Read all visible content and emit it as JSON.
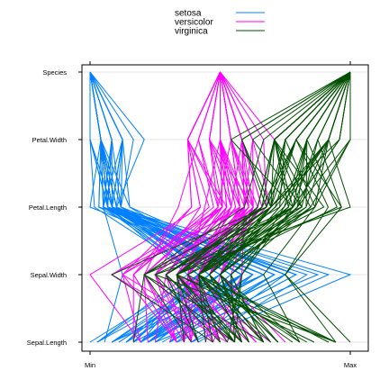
{
  "chart_data": {
    "type": "parallel-coordinates",
    "dimensions": [
      "Sepal.Length",
      "Sepal.Width",
      "Petal.Length",
      "Petal.Width",
      "Species"
    ],
    "x_tick_labels": [
      "Min",
      "Max"
    ],
    "legend": {
      "placement": "top",
      "entries": [
        {
          "label": "setosa",
          "color": "#0080ff"
        },
        {
          "label": "versicolor",
          "color": "#ff00ff"
        },
        {
          "label": "virginica",
          "color": "#005000"
        }
      ]
    },
    "series": [
      {
        "name": "setosa",
        "color": "#0080ff",
        "rows": [
          [
            5.1,
            3.5,
            1.4,
            0.2
          ],
          [
            4.9,
            3.0,
            1.4,
            0.2
          ],
          [
            4.7,
            3.2,
            1.3,
            0.2
          ],
          [
            4.6,
            3.1,
            1.5,
            0.2
          ],
          [
            5.0,
            3.6,
            1.4,
            0.2
          ],
          [
            5.4,
            3.9,
            1.7,
            0.4
          ],
          [
            4.6,
            3.4,
            1.4,
            0.3
          ],
          [
            5.0,
            3.4,
            1.5,
            0.2
          ],
          [
            4.4,
            2.9,
            1.4,
            0.2
          ],
          [
            4.9,
            3.1,
            1.5,
            0.1
          ],
          [
            5.4,
            3.7,
            1.5,
            0.2
          ],
          [
            4.8,
            3.4,
            1.6,
            0.2
          ],
          [
            4.8,
            3.0,
            1.4,
            0.1
          ],
          [
            4.3,
            3.0,
            1.1,
            0.1
          ],
          [
            5.8,
            4.0,
            1.2,
            0.2
          ],
          [
            5.7,
            4.4,
            1.5,
            0.4
          ],
          [
            5.4,
            3.9,
            1.3,
            0.4
          ],
          [
            5.1,
            3.5,
            1.4,
            0.3
          ],
          [
            5.7,
            3.8,
            1.7,
            0.3
          ],
          [
            5.1,
            3.8,
            1.5,
            0.3
          ],
          [
            5.4,
            3.4,
            1.7,
            0.2
          ],
          [
            5.1,
            3.7,
            1.5,
            0.4
          ],
          [
            4.6,
            3.6,
            1.0,
            0.2
          ],
          [
            5.1,
            3.3,
            1.7,
            0.5
          ],
          [
            4.8,
            3.4,
            1.9,
            0.2
          ],
          [
            5.0,
            3.0,
            1.6,
            0.2
          ],
          [
            5.0,
            3.4,
            1.6,
            0.4
          ],
          [
            5.2,
            3.5,
            1.5,
            0.2
          ],
          [
            5.2,
            3.4,
            1.4,
            0.2
          ],
          [
            4.7,
            3.2,
            1.6,
            0.2
          ],
          [
            4.8,
            3.1,
            1.6,
            0.2
          ],
          [
            5.4,
            3.4,
            1.5,
            0.4
          ],
          [
            5.2,
            4.1,
            1.5,
            0.1
          ],
          [
            5.5,
            4.2,
            1.4,
            0.2
          ],
          [
            4.9,
            3.1,
            1.5,
            0.2
          ],
          [
            5.0,
            3.2,
            1.2,
            0.2
          ],
          [
            5.5,
            3.5,
            1.3,
            0.2
          ],
          [
            4.9,
            3.6,
            1.4,
            0.1
          ],
          [
            4.4,
            3.0,
            1.3,
            0.2
          ],
          [
            5.1,
            3.4,
            1.5,
            0.2
          ],
          [
            5.0,
            3.5,
            1.3,
            0.3
          ],
          [
            4.5,
            2.3,
            1.3,
            0.3
          ],
          [
            4.4,
            3.2,
            1.3,
            0.2
          ],
          [
            5.0,
            3.5,
            1.6,
            0.6
          ],
          [
            5.1,
            3.8,
            1.9,
            0.4
          ],
          [
            4.8,
            3.0,
            1.4,
            0.3
          ],
          [
            5.1,
            3.8,
            1.6,
            0.2
          ],
          [
            4.6,
            3.2,
            1.4,
            0.2
          ],
          [
            5.3,
            3.7,
            1.5,
            0.2
          ],
          [
            5.0,
            3.3,
            1.4,
            0.2
          ]
        ]
      },
      {
        "name": "versicolor",
        "color": "#ff00ff",
        "rows": [
          [
            7.0,
            3.2,
            4.7,
            1.4
          ],
          [
            6.4,
            3.2,
            4.5,
            1.5
          ],
          [
            6.9,
            3.1,
            4.9,
            1.5
          ],
          [
            5.5,
            2.3,
            4.0,
            1.3
          ],
          [
            6.5,
            2.8,
            4.6,
            1.5
          ],
          [
            5.7,
            2.8,
            4.5,
            1.3
          ],
          [
            6.3,
            3.3,
            4.7,
            1.6
          ],
          [
            4.9,
            2.4,
            3.3,
            1.0
          ],
          [
            6.6,
            2.9,
            4.6,
            1.3
          ],
          [
            5.2,
            2.7,
            3.9,
            1.4
          ],
          [
            5.0,
            2.0,
            3.5,
            1.0
          ],
          [
            5.9,
            3.0,
            4.2,
            1.5
          ],
          [
            6.0,
            2.2,
            4.0,
            1.0
          ],
          [
            6.1,
            2.9,
            4.7,
            1.4
          ],
          [
            5.6,
            2.9,
            3.6,
            1.3
          ],
          [
            6.7,
            3.1,
            4.4,
            1.4
          ],
          [
            5.6,
            3.0,
            4.5,
            1.5
          ],
          [
            5.8,
            2.7,
            4.1,
            1.0
          ],
          [
            6.2,
            2.2,
            4.5,
            1.5
          ],
          [
            5.6,
            2.5,
            3.9,
            1.1
          ],
          [
            5.9,
            3.2,
            4.8,
            1.8
          ],
          [
            6.1,
            2.8,
            4.0,
            1.3
          ],
          [
            6.3,
            2.5,
            4.9,
            1.5
          ],
          [
            6.1,
            2.8,
            4.7,
            1.2
          ],
          [
            6.4,
            2.9,
            4.3,
            1.3
          ],
          [
            6.6,
            3.0,
            4.4,
            1.4
          ],
          [
            6.8,
            2.8,
            4.8,
            1.4
          ],
          [
            6.7,
            3.0,
            5.0,
            1.7
          ],
          [
            6.0,
            2.9,
            4.5,
            1.5
          ],
          [
            5.7,
            2.6,
            3.5,
            1.0
          ],
          [
            5.5,
            2.4,
            3.8,
            1.1
          ],
          [
            5.5,
            2.4,
            3.7,
            1.0
          ],
          [
            5.8,
            2.7,
            3.9,
            1.2
          ],
          [
            6.0,
            2.7,
            5.1,
            1.6
          ],
          [
            5.4,
            3.0,
            4.5,
            1.5
          ],
          [
            6.0,
            3.4,
            4.5,
            1.6
          ],
          [
            6.7,
            3.1,
            4.7,
            1.5
          ],
          [
            6.3,
            2.3,
            4.4,
            1.3
          ],
          [
            5.6,
            3.0,
            4.1,
            1.3
          ],
          [
            5.5,
            2.5,
            4.0,
            1.3
          ],
          [
            5.5,
            2.6,
            4.4,
            1.2
          ],
          [
            6.1,
            3.0,
            4.6,
            1.4
          ],
          [
            5.8,
            2.6,
            4.0,
            1.2
          ],
          [
            5.0,
            2.3,
            3.3,
            1.0
          ],
          [
            5.6,
            2.7,
            4.2,
            1.3
          ],
          [
            5.7,
            3.0,
            4.2,
            1.2
          ],
          [
            5.7,
            2.9,
            4.2,
            1.3
          ],
          [
            6.2,
            2.9,
            4.3,
            1.3
          ],
          [
            5.1,
            2.5,
            3.0,
            1.1
          ],
          [
            5.7,
            2.8,
            4.1,
            1.3
          ]
        ]
      },
      {
        "name": "virginica",
        "color": "#005000",
        "rows": [
          [
            6.3,
            3.3,
            6.0,
            2.5
          ],
          [
            5.8,
            2.7,
            5.1,
            1.9
          ],
          [
            7.1,
            3.0,
            5.9,
            2.1
          ],
          [
            6.3,
            2.9,
            5.6,
            1.8
          ],
          [
            6.5,
            3.0,
            5.8,
            2.2
          ],
          [
            7.6,
            3.0,
            6.6,
            2.1
          ],
          [
            4.9,
            2.5,
            4.5,
            1.7
          ],
          [
            7.3,
            2.9,
            6.3,
            1.8
          ],
          [
            6.7,
            2.5,
            5.8,
            1.8
          ],
          [
            7.2,
            3.6,
            6.1,
            2.5
          ],
          [
            6.5,
            3.2,
            5.1,
            2.0
          ],
          [
            6.4,
            2.7,
            5.3,
            1.9
          ],
          [
            6.8,
            3.0,
            5.5,
            2.1
          ],
          [
            5.7,
            2.5,
            5.0,
            2.0
          ],
          [
            5.8,
            2.8,
            5.1,
            2.4
          ],
          [
            6.4,
            3.2,
            5.3,
            2.3
          ],
          [
            6.5,
            3.0,
            5.5,
            1.8
          ],
          [
            7.7,
            3.8,
            6.7,
            2.2
          ],
          [
            7.7,
            2.6,
            6.9,
            2.3
          ],
          [
            6.0,
            2.2,
            5.0,
            1.5
          ],
          [
            6.9,
            3.2,
            5.7,
            2.3
          ],
          [
            5.6,
            2.8,
            4.9,
            2.0
          ],
          [
            7.7,
            2.8,
            6.7,
            2.0
          ],
          [
            6.3,
            2.7,
            4.9,
            1.8
          ],
          [
            6.7,
            3.3,
            5.7,
            2.1
          ],
          [
            7.2,
            3.2,
            6.0,
            1.8
          ],
          [
            6.2,
            2.8,
            4.8,
            1.8
          ],
          [
            6.1,
            3.0,
            4.9,
            1.8
          ],
          [
            6.4,
            2.8,
            5.6,
            2.1
          ],
          [
            7.2,
            3.0,
            5.8,
            1.6
          ],
          [
            7.4,
            2.8,
            6.1,
            1.9
          ],
          [
            7.9,
            3.8,
            6.4,
            2.0
          ],
          [
            6.4,
            2.8,
            5.6,
            2.2
          ],
          [
            6.3,
            2.8,
            5.1,
            1.5
          ],
          [
            6.1,
            2.6,
            5.6,
            1.4
          ],
          [
            7.7,
            3.0,
            6.1,
            2.3
          ],
          [
            6.3,
            3.4,
            5.6,
            2.4
          ],
          [
            6.4,
            3.1,
            5.5,
            1.8
          ],
          [
            6.0,
            3.0,
            4.8,
            1.8
          ],
          [
            6.9,
            3.1,
            5.4,
            2.1
          ],
          [
            6.7,
            3.1,
            5.6,
            2.4
          ],
          [
            6.9,
            3.1,
            5.1,
            2.3
          ],
          [
            5.8,
            2.7,
            5.1,
            1.9
          ],
          [
            6.8,
            3.2,
            5.9,
            2.3
          ],
          [
            6.7,
            3.3,
            5.7,
            2.5
          ],
          [
            6.7,
            3.0,
            5.2,
            2.3
          ],
          [
            6.3,
            2.5,
            5.0,
            1.9
          ],
          [
            6.5,
            3.0,
            5.2,
            2.0
          ],
          [
            6.2,
            3.4,
            5.4,
            2.3
          ],
          [
            5.9,
            3.0,
            5.1,
            1.8
          ]
        ]
      }
    ],
    "grid": true
  }
}
